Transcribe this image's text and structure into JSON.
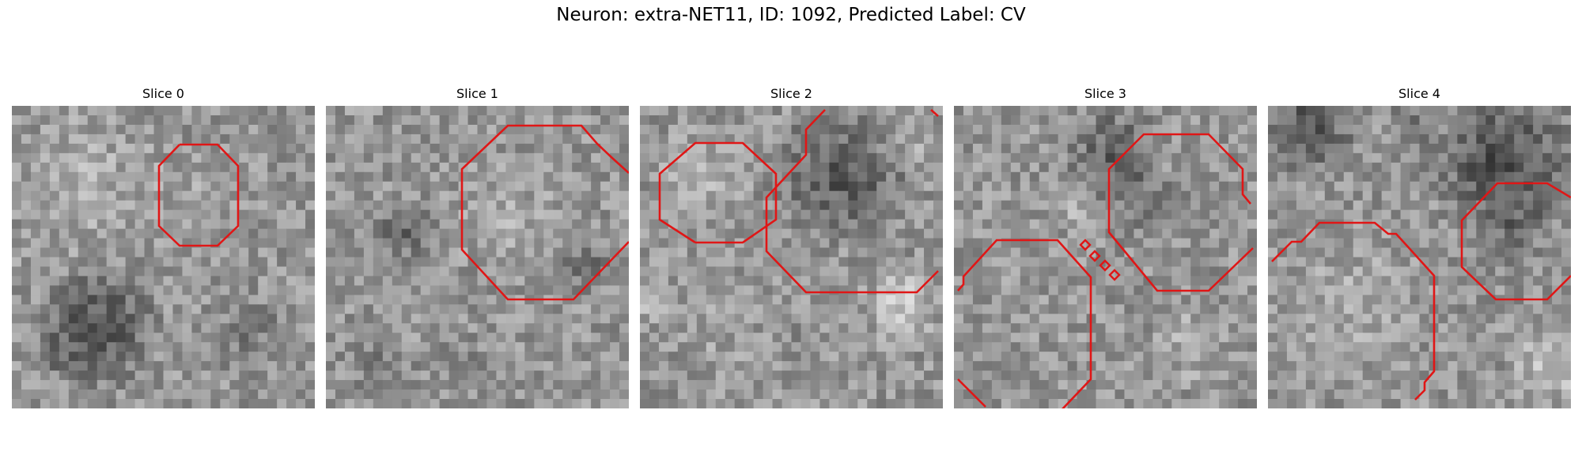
{
  "figure": {
    "title": "Neuron: extra-NET11, ID: 1092, Predicted Label: CV"
  },
  "contour_color": "#e01616",
  "panels": [
    {
      "title": "Slice 0"
    },
    {
      "title": "Slice 1"
    },
    {
      "title": "Slice 2"
    },
    {
      "title": "Slice 3"
    },
    {
      "title": "Slice 4"
    }
  ]
}
